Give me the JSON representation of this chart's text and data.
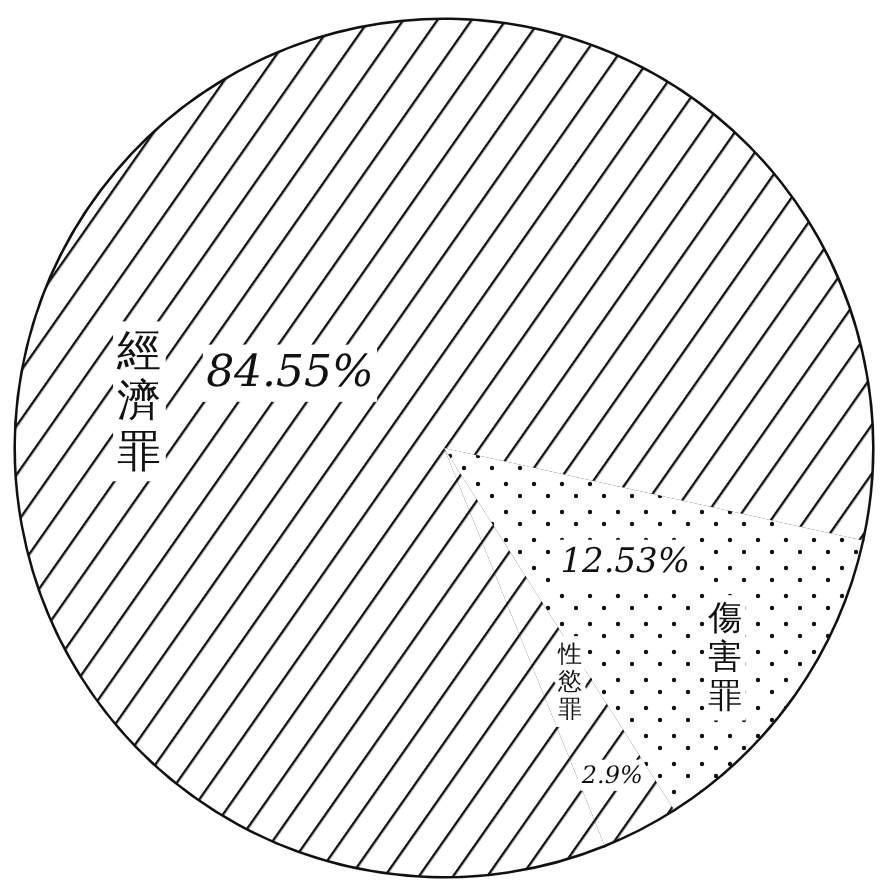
{
  "chart_data": {
    "type": "pie",
    "categories": [
      "經濟罪",
      "傷害罪",
      "性慾罪"
    ],
    "values": [
      84.55,
      12.53,
      2.9
    ],
    "value_labels": [
      "84.55%",
      "12.53%",
      "2.9%"
    ],
    "colors": [
      "#111111",
      "#111111",
      "#111111"
    ]
  }
}
